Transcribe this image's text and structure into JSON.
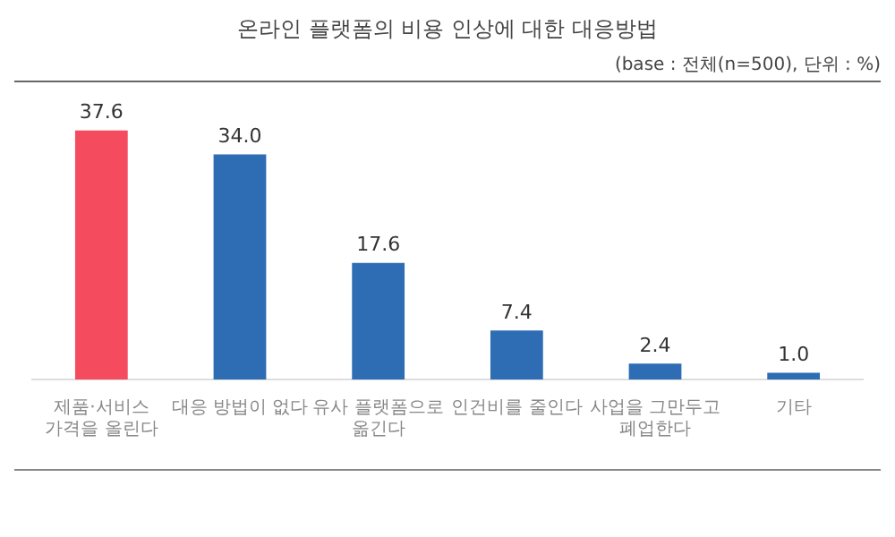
{
  "chart_data": {
    "type": "bar",
    "title": "온라인 플랫폼의 비용 인상에 대한 대응방법",
    "subtitle": "(base : 전체(n=500), 단위 : %)",
    "categories": [
      "제품·서비스\n가격을 올린다",
      "대응 방법이 없다",
      "유사 플랫폼으로\n옮긴다",
      "인건비를 줄인다",
      "사업을 그만두고\n폐업한다",
      "기타"
    ],
    "values": [
      37.6,
      34.0,
      17.6,
      7.4,
      2.4,
      1.0
    ],
    "colors": [
      "#f54b5e",
      "#2e6db4",
      "#2e6db4",
      "#2e6db4",
      "#2e6db4",
      "#2e6db4"
    ],
    "value_labels": [
      "37.6",
      "34.0",
      "17.6",
      "7.4",
      "2.4",
      "1.0"
    ],
    "tick_labels": "x",
    "grid": false,
    "legend": false
  }
}
